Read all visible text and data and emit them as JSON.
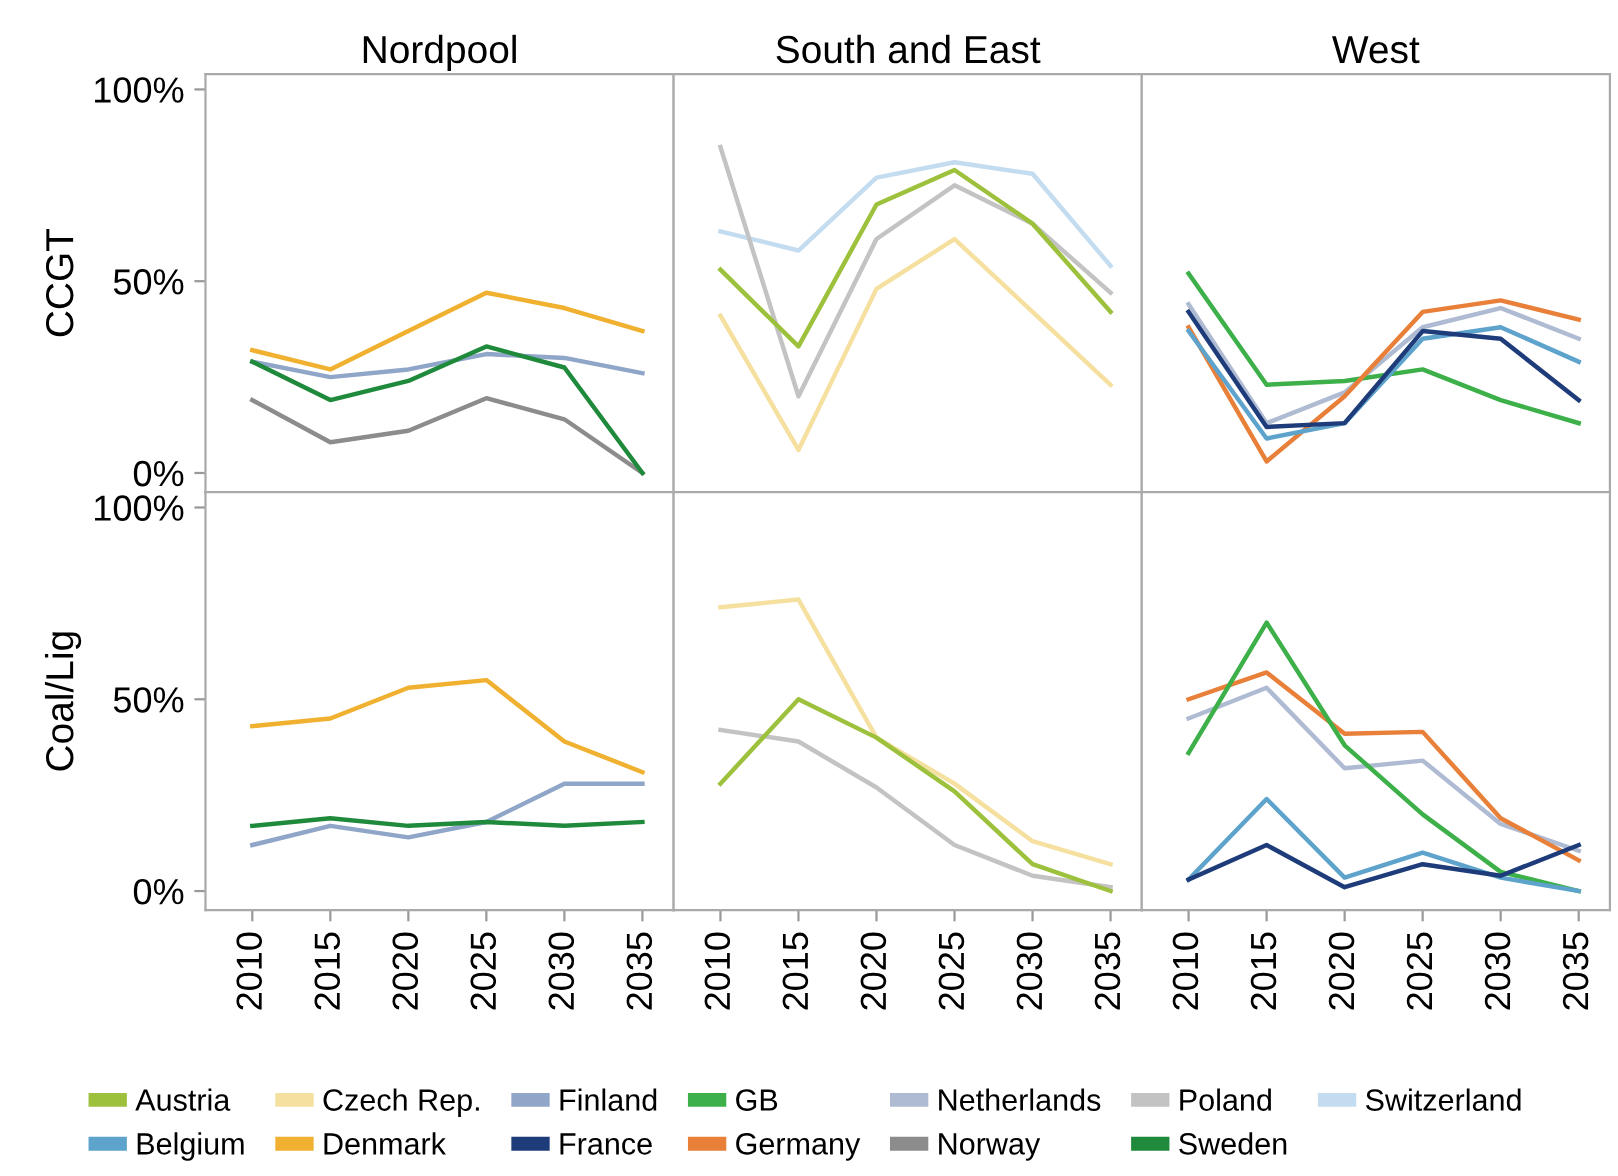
{
  "chart_data": [
    {
      "type": "line",
      "title": "Nordpool",
      "ylabel": "CCGT",
      "x": [
        2010,
        2015,
        2020,
        2025,
        2030,
        2035
      ],
      "xlim": [
        2007,
        2037
      ],
      "xticks": [
        2010,
        2015,
        2020,
        2025,
        2030,
        2035
      ],
      "ylim": [
        -5,
        104
      ],
      "yticks": [
        {
          "value": 0,
          "label": "0%"
        },
        {
          "value": 50,
          "label": "50%"
        },
        {
          "value": 100,
          "label": "100%"
        }
      ],
      "tick_labels": "y",
      "legend": "bottom",
      "series": [
        {
          "name": "Denmark",
          "color": "#f0b030",
          "values": [
            32,
            27,
            37,
            47,
            43,
            37
          ]
        },
        {
          "name": "Finland",
          "color": "#8fa6c9",
          "values": [
            29,
            25,
            27,
            31,
            30,
            26
          ]
        },
        {
          "name": "Norway",
          "color": "#8c8c8c",
          "values": [
            19,
            8,
            11,
            19.5,
            14,
            0
          ]
        },
        {
          "name": "Sweden",
          "color": "#1f8a3c",
          "values": [
            29,
            19,
            24,
            33,
            27.5,
            0
          ]
        }
      ]
    },
    {
      "type": "line",
      "title": "South and East",
      "x": [
        2010,
        2015,
        2020,
        2025,
        2030,
        2035
      ],
      "xlim": [
        2007,
        2037
      ],
      "xticks": [
        2010,
        2015,
        2020,
        2025,
        2030,
        2035
      ],
      "ylim": [
        -5,
        104
      ],
      "yticks": [
        {
          "value": 0,
          "label": "0%"
        },
        {
          "value": 50,
          "label": "50%"
        },
        {
          "value": 100,
          "label": "100%"
        }
      ],
      "tick_labels": false,
      "legend": "bottom",
      "series": [
        {
          "name": "Switzerland",
          "color": "#c4dcef",
          "values": [
            63,
            58,
            77,
            81,
            78,
            54
          ]
        },
        {
          "name": "Czech Rep.",
          "color": "#f6e0a0",
          "values": [
            41,
            6,
            48,
            61,
            42,
            23
          ]
        },
        {
          "name": "Poland",
          "color": "#c3c3c3",
          "values": [
            85,
            20,
            61,
            75,
            65,
            47
          ]
        },
        {
          "name": "Austria",
          "color": "#9dc13c",
          "values": [
            53,
            33,
            70,
            79,
            65,
            42
          ]
        }
      ]
    },
    {
      "type": "line",
      "title": "West",
      "x": [
        2010,
        2015,
        2020,
        2025,
        2030,
        2035
      ],
      "xlim": [
        2007,
        2037
      ],
      "xticks": [
        2010,
        2015,
        2020,
        2025,
        2030,
        2035
      ],
      "ylim": [
        -5,
        104
      ],
      "yticks": [
        {
          "value": 0,
          "label": "0%"
        },
        {
          "value": 50,
          "label": "50%"
        },
        {
          "value": 100,
          "label": "100%"
        }
      ],
      "tick_labels": false,
      "legend": "bottom",
      "series": [
        {
          "name": "Netherlands",
          "color": "#aebbd2",
          "values": [
            44,
            13,
            21,
            38,
            43,
            35
          ]
        },
        {
          "name": "GB",
          "color": "#3db04a",
          "values": [
            52,
            23,
            24,
            27,
            19,
            13
          ]
        },
        {
          "name": "Germany",
          "color": "#e8803a",
          "values": [
            38,
            3,
            20,
            42,
            45,
            40
          ]
        },
        {
          "name": "Belgium",
          "color": "#5ea3cc",
          "values": [
            37,
            9,
            13,
            35,
            38,
            29
          ]
        },
        {
          "name": "France",
          "color": "#1f3c7a",
          "values": [
            42,
            12,
            13,
            37,
            35,
            19
          ]
        }
      ]
    },
    {
      "type": "line",
      "ylabel": "Coal/Lig",
      "x": [
        2010,
        2015,
        2020,
        2025,
        2030,
        2035
      ],
      "xlim": [
        2007,
        2037
      ],
      "xticks": [
        2010,
        2015,
        2020,
        2025,
        2030,
        2035
      ],
      "ylim": [
        -5,
        104
      ],
      "yticks": [
        {
          "value": 0,
          "label": "0%"
        },
        {
          "value": 50,
          "label": "50%"
        },
        {
          "value": 100,
          "label": "100%"
        }
      ],
      "legend": "bottom",
      "series": [
        {
          "name": "Denmark",
          "color": "#f0b030",
          "values": [
            43,
            45,
            53,
            55,
            39,
            31
          ]
        },
        {
          "name": "Finland",
          "color": "#8fa6c9",
          "values": [
            12,
            17,
            14,
            18,
            28,
            28
          ]
        },
        {
          "name": "Sweden",
          "color": "#1f8a3c",
          "values": [
            17,
            19,
            17,
            18,
            17,
            18
          ]
        }
      ]
    },
    {
      "type": "line",
      "x": [
        2010,
        2015,
        2020,
        2025,
        2030,
        2035
      ],
      "xlim": [
        2007,
        2037
      ],
      "xticks": [
        2010,
        2015,
        2020,
        2025,
        2030,
        2035
      ],
      "ylim": [
        -5,
        104
      ],
      "yticks": [
        {
          "value": 0,
          "label": "0%"
        },
        {
          "value": 50,
          "label": "50%"
        },
        {
          "value": 100,
          "label": "100%"
        }
      ],
      "tick_labels": "x",
      "legend": "bottom",
      "series": [
        {
          "name": "Czech Rep.",
          "color": "#f6e0a0",
          "values": [
            74,
            76,
            40,
            28,
            13,
            7
          ]
        },
        {
          "name": "Poland",
          "color": "#c3c3c3",
          "values": [
            42,
            39,
            27,
            12,
            4,
            1
          ]
        },
        {
          "name": "Austria",
          "color": "#9dc13c",
          "values": [
            28,
            50,
            40,
            26,
            7,
            0
          ]
        }
      ]
    },
    {
      "type": "line",
      "x": [
        2010,
        2015,
        2020,
        2025,
        2030,
        2035
      ],
      "xlim": [
        2007,
        2037
      ],
      "xticks": [
        2010,
        2015,
        2020,
        2025,
        2030,
        2035
      ],
      "ylim": [
        -5,
        104
      ],
      "yticks": [
        {
          "value": 0,
          "label": "0%"
        },
        {
          "value": 50,
          "label": "50%"
        },
        {
          "value": 100,
          "label": "100%"
        }
      ],
      "tick_labels": "x",
      "legend": "bottom",
      "series": [
        {
          "name": "Netherlands",
          "color": "#aebbd2",
          "values": [
            45,
            53,
            32,
            34,
            17.5,
            10.5
          ]
        },
        {
          "name": "Germany",
          "color": "#e8803a",
          "values": [
            50,
            57,
            41,
            41.5,
            19,
            8
          ]
        },
        {
          "name": "GB",
          "color": "#3db04a",
          "values": [
            36,
            70,
            38,
            20,
            5,
            0
          ]
        },
        {
          "name": "Belgium",
          "color": "#5ea3cc",
          "values": [
            3,
            24,
            3.5,
            10,
            3.5,
            0
          ]
        },
        {
          "name": "France",
          "color": "#1f3c7a",
          "values": [
            3,
            12,
            1,
            7,
            4,
            12
          ]
        }
      ]
    }
  ]
}
